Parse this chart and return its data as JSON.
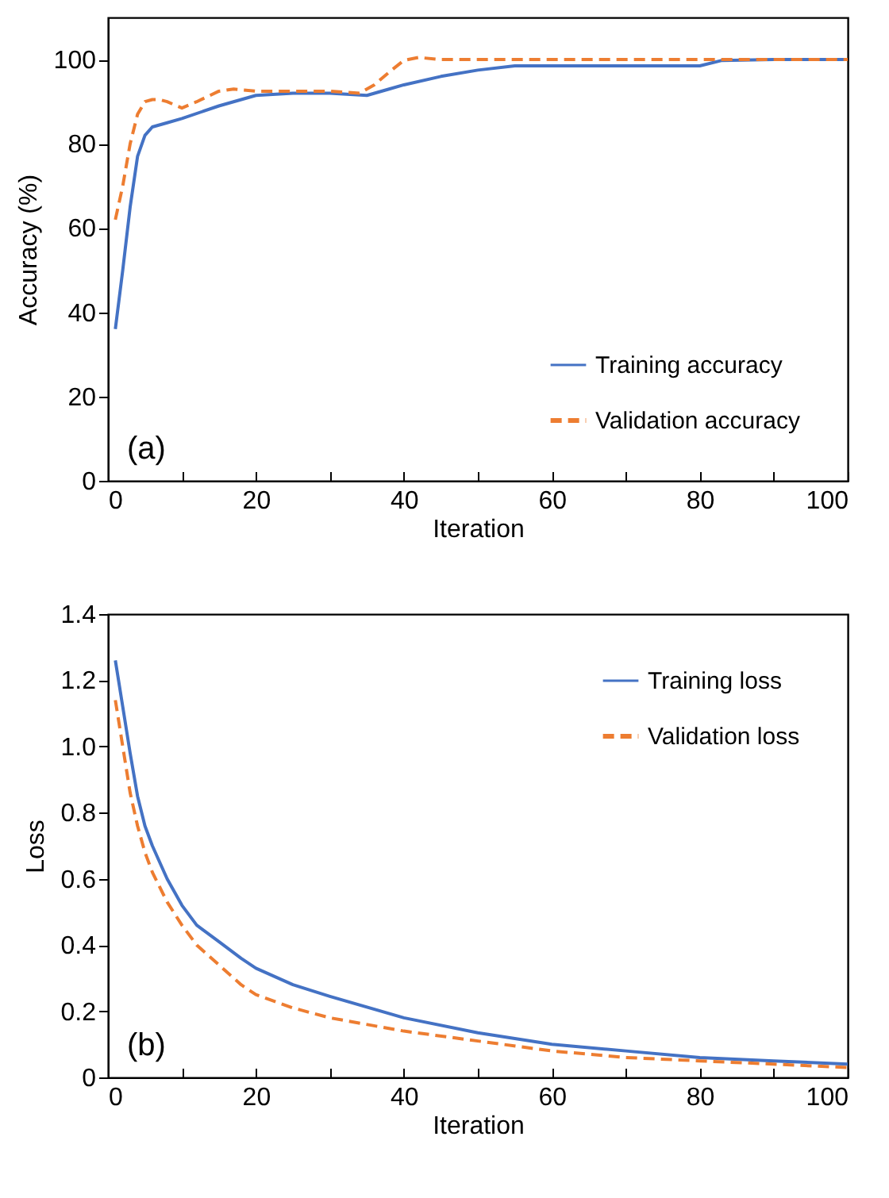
{
  "chart_data": [
    {
      "type": "line",
      "xlabel": "Iteration",
      "ylabel": "Accuracy (%)",
      "annotations": [
        "(a)"
      ],
      "xlim": [
        0,
        100
      ],
      "ylim": [
        0,
        110
      ],
      "xticks": [
        0,
        {
          "value": 10,
          "label": null
        },
        20,
        {
          "value": 30,
          "label": null
        },
        40,
        {
          "value": 50,
          "label": null
        },
        60,
        {
          "value": 70,
          "label": null
        },
        80,
        {
          "value": 90,
          "label": null
        },
        100
      ],
      "yticks": [
        0,
        20,
        40,
        60,
        80,
        100
      ],
      "grid": false,
      "legend": "bottom right",
      "marker": "none",
      "series": [
        {
          "name": "Training accuracy",
          "color": "#4472c4",
          "line_style": "solid",
          "x": [
            1,
            2,
            3,
            4,
            5,
            6,
            8,
            10,
            15,
            20,
            25,
            30,
            35,
            38,
            40,
            45,
            50,
            55,
            60,
            70,
            80,
            83,
            90,
            100
          ],
          "values": [
            36,
            50,
            65,
            77,
            82,
            84,
            85,
            86,
            89,
            91.5,
            92,
            92,
            91.5,
            93,
            94,
            96,
            97.5,
            98.5,
            98.5,
            98.5,
            98.5,
            99.8,
            100,
            100
          ]
        },
        {
          "name": "Validation accuracy",
          "color": "#ed7d31",
          "line_style": "dashed",
          "x": [
            1,
            2,
            3,
            4,
            5,
            6,
            7,
            8,
            10,
            12,
            15,
            17,
            20,
            30,
            34,
            36,
            38,
            40,
            42,
            45,
            100
          ],
          "values": [
            62,
            70,
            80,
            87,
            90,
            90.5,
            90.5,
            90,
            88.5,
            90,
            92.5,
            93,
            92.5,
            92.5,
            92,
            94,
            97,
            99.8,
            100.5,
            100,
            100
          ]
        }
      ]
    },
    {
      "type": "line",
      "xlabel": "Iteration",
      "ylabel": "Loss",
      "annotations": [
        "(b)"
      ],
      "xlim": [
        0,
        100
      ],
      "ylim": [
        0,
        1.4
      ],
      "xticks": [
        0,
        {
          "value": 10,
          "label": null
        },
        20,
        {
          "value": 30,
          "label": null
        },
        40,
        {
          "value": 50,
          "label": null
        },
        60,
        {
          "value": 70,
          "label": null
        },
        80,
        {
          "value": 90,
          "label": null
        },
        100
      ],
      "yticks": [
        0,
        0.2,
        0.4,
        0.6,
        0.8,
        {
          "value": 1,
          "label": "1.0"
        },
        1.2,
        1.4
      ],
      "grid": false,
      "legend": "top right",
      "marker": "none",
      "series": [
        {
          "name": "Training loss",
          "color": "#4472c4",
          "line_style": "solid",
          "x": [
            1,
            2,
            3,
            4,
            5,
            6,
            8,
            10,
            12,
            15,
            18,
            20,
            25,
            30,
            40,
            50,
            60,
            70,
            80,
            90,
            100
          ],
          "values": [
            1.26,
            1.12,
            0.98,
            0.85,
            0.76,
            0.7,
            0.6,
            0.52,
            0.46,
            0.41,
            0.36,
            0.33,
            0.28,
            0.245,
            0.18,
            0.135,
            0.1,
            0.08,
            0.06,
            0.05,
            0.04
          ]
        },
        {
          "name": "Validation loss",
          "color": "#ed7d31",
          "line_style": "dashed",
          "x": [
            1,
            2,
            3,
            4,
            5,
            6,
            8,
            10,
            12,
            15,
            18,
            20,
            25,
            30,
            40,
            50,
            60,
            70,
            80,
            90,
            100
          ],
          "values": [
            1.14,
            1,
            0.86,
            0.76,
            0.68,
            0.62,
            0.53,
            0.46,
            0.4,
            0.34,
            0.28,
            0.25,
            0.21,
            0.18,
            0.14,
            0.11,
            0.08,
            0.06,
            0.05,
            0.04,
            0.03
          ]
        }
      ]
    }
  ]
}
